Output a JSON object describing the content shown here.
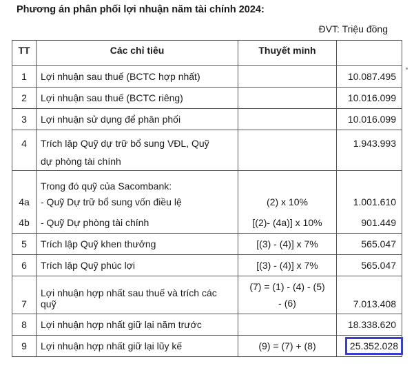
{
  "title": "Phương án phân phối lợi nhuận năm tài chính 2024:",
  "unit": "ĐVT: Triệu đồng",
  "headers": [
    "TT",
    "Các chỉ tiêu",
    "Thuyết minh",
    ""
  ],
  "rows": [
    {
      "tt": "1",
      "item": "Lợi nhuận sau thuế (BCTC hợp nhất)",
      "note": "",
      "value": "10.087.495"
    },
    {
      "tt": "2",
      "item": "Lợi nhuận sau thuế (BCTC riêng)",
      "note": "",
      "value": "10.016.099"
    },
    {
      "tt": "3",
      "item": "Lợi nhuận sử dụng để phân phối",
      "note": "",
      "value": "10.016.099"
    },
    {
      "tt": "4",
      "item": "Trích lập Quỹ dự trữ bổ sung VĐL, Quỹ dự phòng tài chính",
      "note": "",
      "value": "1.943.993"
    },
    {
      "tt": "",
      "item": "Trong đó quỹ của Sacombank:",
      "note": "",
      "value": ""
    },
    {
      "tt": "4a",
      "item": "- Quỹ Dự trữ bổ sung vốn điều lệ",
      "note": "(2) x 10%",
      "value": "1.001.610"
    },
    {
      "tt": "4b",
      "item": "- Quỹ Dự phòng tài chính",
      "note": "[(2)- (4a)] x 10%",
      "value": "901.449"
    },
    {
      "tt": "5",
      "item": "Trích lập Quỹ khen thưởng",
      "note": "[(3) - (4)] x 7%",
      "value": "565.047"
    },
    {
      "tt": "6",
      "item": "Trích lập Quỹ phúc lợi",
      "note": "[(3) - (4)] x 7%",
      "value": "565.047"
    },
    {
      "tt": "7",
      "item": "Lợi nhuận hợp nhất sau thuế và trích các quỹ",
      "note": "(7) = (1) - (4) - (5) - (6)",
      "value": "7.013.408"
    },
    {
      "tt": "8",
      "item": "Lợi nhuận hợp nhất giữ lại năm trước",
      "note": "",
      "value": "18.338.620"
    },
    {
      "tt": "9",
      "item": "Lợi nhuận hợp nhất giữ lại lũy kế",
      "note": "(9) = (7) + (8)",
      "value": "25.352.028"
    }
  ],
  "highlight_color": "#3a3fc8"
}
